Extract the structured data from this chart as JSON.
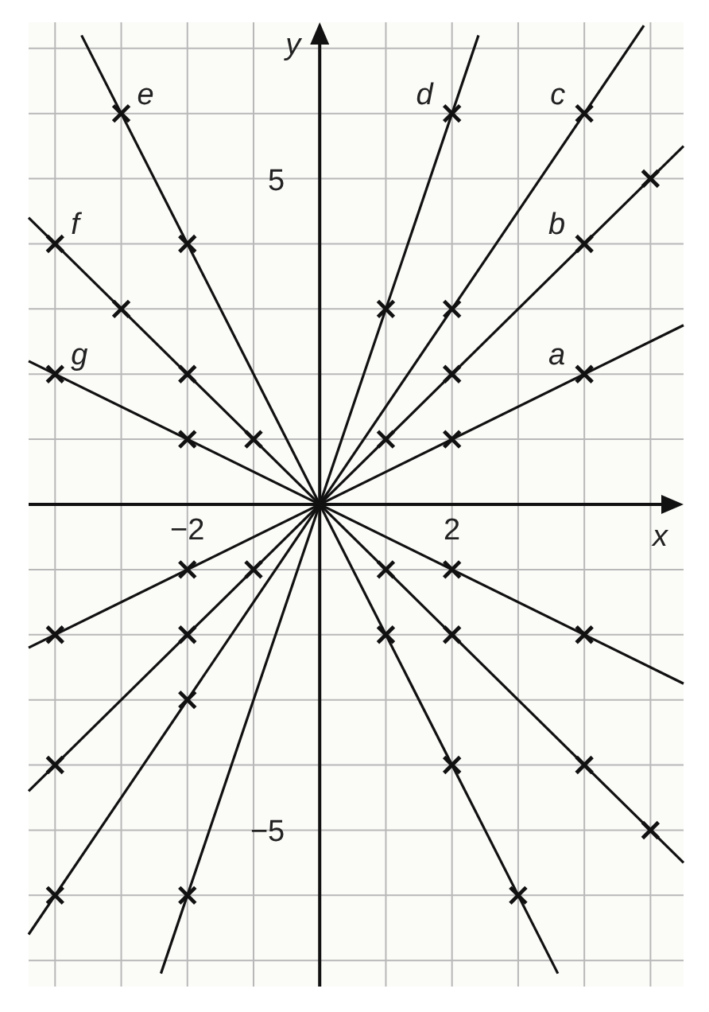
{
  "chart_data": {
    "type": "line",
    "xlabel": "x",
    "ylabel": "y",
    "xlim": [
      -4.4,
      5.5
    ],
    "ylim": [
      -7.4,
      7.4
    ],
    "xticks": [
      {
        "value": -4,
        "label": null
      },
      {
        "value": -3,
        "label": null
      },
      {
        "value": -2,
        "label": "−2"
      },
      {
        "value": -1,
        "label": null
      },
      {
        "value": 1,
        "label": null
      },
      {
        "value": 2,
        "label": "2"
      },
      {
        "value": 3,
        "label": null
      },
      {
        "value": 4,
        "label": null
      },
      {
        "value": 5,
        "label": null
      }
    ],
    "yticks": [
      {
        "value": -7,
        "label": null
      },
      {
        "value": -6,
        "label": null
      },
      {
        "value": -5,
        "label": "−5"
      },
      {
        "value": -4,
        "label": null
      },
      {
        "value": -3,
        "label": null
      },
      {
        "value": -2,
        "label": null
      },
      {
        "value": -1,
        "label": null
      },
      {
        "value": 1,
        "label": null
      },
      {
        "value": 2,
        "label": null
      },
      {
        "value": 3,
        "label": null
      },
      {
        "value": 4,
        "label": null
      },
      {
        "value": 5,
        "label": "5"
      },
      {
        "value": 6,
        "label": null
      },
      {
        "value": 7,
        "label": null
      }
    ],
    "grid": true,
    "marker": "none",
    "line_style": "solid",
    "series": [
      {
        "name": "a",
        "color": "#111111",
        "x": [
          -4.4,
          5.5
        ],
        "values": [
          -2.2,
          2.75
        ]
      },
      {
        "name": "b",
        "color": "#111111",
        "x": [
          -4.4,
          5.5
        ],
        "values": [
          -4.4,
          5.5
        ]
      },
      {
        "name": "c",
        "color": "#111111",
        "x": [
          -4.4,
          4.9
        ],
        "values": [
          -6.6,
          7.35
        ]
      },
      {
        "name": "d",
        "color": "#111111",
        "x": [
          -2.4,
          2.4
        ],
        "values": [
          -7.2,
          7.2
        ]
      },
      {
        "name": "e",
        "color": "#111111",
        "x": [
          -3.6,
          3.6
        ],
        "values": [
          7.2,
          -7.2
        ]
      },
      {
        "name": "f",
        "color": "#111111",
        "x": [
          -4.4,
          5.5
        ],
        "values": [
          4.4,
          -5.5
        ]
      },
      {
        "name": "g",
        "color": "#111111",
        "x": [
          -4.4,
          5.5
        ],
        "values": [
          2.2,
          -2.75
        ]
      },
      {
        "type": "scatter",
        "marker": "cross",
        "color": "#111111",
        "x": [
          2,
          4,
          -2,
          -4,
          1,
          2,
          4,
          5,
          -1,
          -2,
          -4,
          2,
          4,
          -2,
          -4,
          1,
          2,
          -2,
          -3,
          -2,
          1,
          2,
          3,
          -4,
          -3,
          -2,
          -1,
          1,
          2,
          4,
          5,
          -4,
          -2,
          2,
          4
        ],
        "values": [
          1,
          2,
          -1,
          -2,
          1,
          2,
          4,
          5,
          -1,
          -2,
          -4,
          3,
          6,
          -3,
          -6,
          3,
          6,
          -6,
          6,
          4,
          -2,
          -4,
          -6,
          4,
          3,
          2,
          1,
          -1,
          -2,
          -4,
          -5,
          2,
          1,
          -1,
          -2
        ]
      }
    ]
  }
}
